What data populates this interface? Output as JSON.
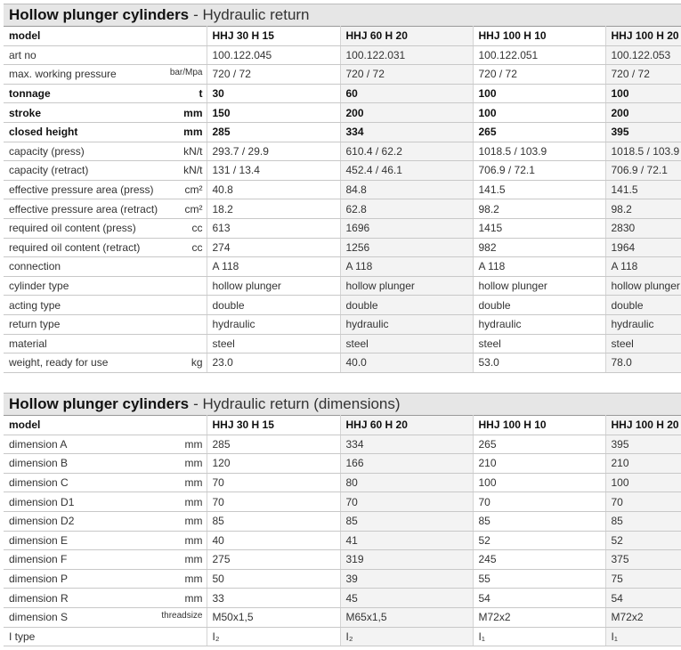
{
  "tables": [
    {
      "title": "Hollow plunger cylinders",
      "subtitle": "- Hydraulic return",
      "header": {
        "label": "model",
        "columns": [
          "HHJ 30 H 15",
          "HHJ 60 H 20",
          "HHJ 100 H 10",
          "HHJ 100 H 20"
        ]
      },
      "rows": [
        {
          "label": "art no",
          "values": [
            "100.122.045",
            "100.122.031",
            "100.122.051",
            "100.122.053"
          ]
        },
        {
          "label": "max. working pressure",
          "unit": "bar/Mpa",
          "values": [
            "720 / 72",
            "720 / 72",
            "720 / 72",
            "720 / 72"
          ]
        },
        {
          "label": "tonnage",
          "unit": "t",
          "bold": true,
          "values": [
            "30",
            "60",
            "100",
            "100"
          ]
        },
        {
          "label": "stroke",
          "unit": "mm",
          "bold": true,
          "values": [
            "150",
            "200",
            "100",
            "200"
          ]
        },
        {
          "label": "closed height",
          "unit": "mm",
          "bold": true,
          "values": [
            "285",
            "334",
            "265",
            "395"
          ]
        },
        {
          "label": "capacity (press)",
          "unit": "kN/t",
          "values": [
            "293.7 / 29.9",
            "610.4 / 62.2",
            "1018.5 / 103.9",
            "1018.5 / 103.9"
          ]
        },
        {
          "label": "capacity (retract)",
          "unit": "kN/t",
          "values": [
            "131 / 13.4",
            "452.4 / 46.1",
            "706.9 / 72.1",
            "706.9 / 72.1"
          ]
        },
        {
          "label": "effective pressure area (press)",
          "unit": "cm²",
          "values": [
            "40.8",
            "84.8",
            "141.5",
            "141.5"
          ]
        },
        {
          "label": "effective pressure area (retract)",
          "unit": "cm²",
          "values": [
            "18.2",
            "62.8",
            "98.2",
            "98.2"
          ]
        },
        {
          "label": "required oil content (press)",
          "unit": "cc",
          "values": [
            "613",
            "1696",
            "1415",
            "2830"
          ]
        },
        {
          "label": "required oil content (retract)",
          "unit": "cc",
          "values": [
            "274",
            "1256",
            "982",
            "1964"
          ]
        },
        {
          "label": "connection",
          "values": [
            "A 118",
            "A 118",
            "A 118",
            "A 118"
          ]
        },
        {
          "label": "cylinder type",
          "values": [
            "hollow plunger",
            "hollow plunger",
            "hollow plunger",
            "hollow plunger"
          ]
        },
        {
          "label": "acting type",
          "values": [
            "double",
            "double",
            "double",
            "double"
          ]
        },
        {
          "label": "return type",
          "values": [
            "hydraulic",
            "hydraulic",
            "hydraulic",
            "hydraulic"
          ]
        },
        {
          "label": "material",
          "values": [
            "steel",
            "steel",
            "steel",
            "steel"
          ]
        },
        {
          "label": "weight, ready for use",
          "unit": "kg",
          "values": [
            "23.0",
            "40.0",
            "53.0",
            "78.0"
          ]
        }
      ]
    },
    {
      "title": "Hollow plunger cylinders",
      "subtitle": "- Hydraulic return (dimensions)",
      "header": {
        "label": "model",
        "columns": [
          "HHJ 30 H 15",
          "HHJ 60 H 20",
          "HHJ 100 H 10",
          "HHJ 100 H 20"
        ]
      },
      "rows": [
        {
          "label": "dimension A",
          "unit": "mm",
          "values": [
            "285",
            "334",
            "265",
            "395"
          ]
        },
        {
          "label": "dimension B",
          "unit": "mm",
          "values": [
            "120",
            "166",
            "210",
            "210"
          ]
        },
        {
          "label": "dimension C",
          "unit": "mm",
          "values": [
            "70",
            "80",
            "100",
            "100"
          ]
        },
        {
          "label": "dimension D1",
          "unit": "mm",
          "values": [
            "70",
            "70",
            "70",
            "70"
          ]
        },
        {
          "label": "dimension D2",
          "unit": "mm",
          "values": [
            "85",
            "85",
            "85",
            "85"
          ]
        },
        {
          "label": "dimension E",
          "unit": "mm",
          "values": [
            "40",
            "41",
            "52",
            "52"
          ]
        },
        {
          "label": "dimension F",
          "unit": "mm",
          "values": [
            "275",
            "319",
            "245",
            "375"
          ]
        },
        {
          "label": "dimension P",
          "unit": "mm",
          "values": [
            "50",
            "39",
            "55",
            "75"
          ]
        },
        {
          "label": "dimension R",
          "unit": "mm",
          "values": [
            "33",
            "45",
            "54",
            "54"
          ]
        },
        {
          "label": "dimension S",
          "unit": "threadsize",
          "values": [
            "M50x1,5",
            "M65x1,5",
            "M72x2",
            "M72x2"
          ]
        },
        {
          "label": "I type",
          "values": [
            "I₂",
            "I₂",
            "I₁",
            "I₁"
          ]
        }
      ]
    }
  ]
}
